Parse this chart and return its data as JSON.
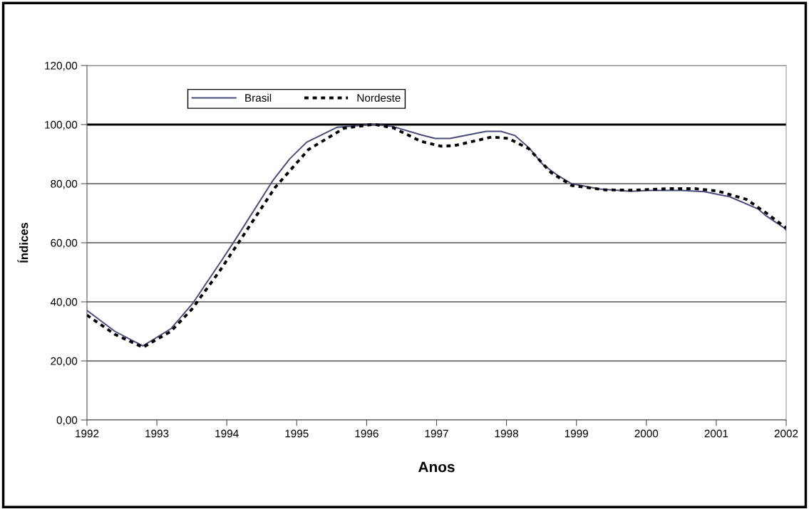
{
  "chart_data": {
    "type": "line",
    "xlabel": "Anos",
    "ylabel": "Índices",
    "xlim": [
      1992,
      2002
    ],
    "xticks": [
      1992,
      1993,
      1994,
      1995,
      1996,
      1997,
      1998,
      1999,
      2000,
      2001,
      2002
    ],
    "ylim": [
      0,
      120
    ],
    "yticks": [
      {
        "value": 0,
        "label": "0,00"
      },
      {
        "value": 20,
        "label": "20,00"
      },
      {
        "value": 40,
        "label": "40,00"
      },
      {
        "value": 60,
        "label": "60,00"
      },
      {
        "value": 80,
        "label": "80,00"
      },
      {
        "value": 100,
        "label": "100,00"
      },
      {
        "value": 120,
        "label": "120,00"
      }
    ],
    "grid": "y",
    "legend": "top left",
    "marker": "none",
    "ref_lines": [
      {
        "axis": "y",
        "value": 100,
        "color": "#000000",
        "line_style": "solid"
      }
    ],
    "series": [
      {
        "name": "Brasil",
        "color": "#4a4a7a",
        "line_style": "solid",
        "x": [
          1992,
          1992.4,
          1992.8,
          1993.2,
          1993.51,
          1993.92,
          1994.12,
          1994.66,
          1994.9,
          1995.14,
          1995.58,
          1995.85,
          1996.1,
          1996.38,
          1996.78,
          1996.98,
          1997.19,
          1997.71,
          1997.92,
          1998.12,
          1998.32,
          1998.52,
          1998.72,
          1998.93,
          1999.33,
          1999.78,
          2000.02,
          2000.5,
          2000.83,
          2001.19,
          2001.6,
          2001.72,
          2001.96,
          2002
        ],
        "values": [
          37.1,
          30.0,
          25.1,
          30.9,
          39.4,
          53.8,
          61.0,
          81.1,
          88.4,
          94.0,
          99.1,
          99.6,
          100.1,
          99.3,
          96.5,
          95.3,
          95.3,
          97.7,
          97.7,
          96.3,
          92.2,
          86.5,
          83.0,
          80.0,
          78.2,
          77.4,
          77.7,
          77.7,
          77.3,
          75.6,
          71.4,
          69.0,
          65.2,
          64.3
        ]
      },
      {
        "name": "Nordeste",
        "color": "#000000",
        "line_style": "dotted",
        "x": [
          1992,
          1992.4,
          1992.8,
          1993.2,
          1993.5,
          1993.9,
          1994.15,
          1994.69,
          1995.17,
          1995.68,
          1995.85,
          1996.1,
          1996.38,
          1996.78,
          1997.06,
          1997.26,
          1997.79,
          1998.03,
          1998.32,
          1998.64,
          1998.93,
          1999.41,
          1999.78,
          2000.33,
          2000.7,
          2001.02,
          2001.43,
          2001.72,
          2002
        ],
        "values": [
          35.5,
          29.0,
          24.6,
          30.0,
          37.5,
          50.5,
          59.4,
          78.7,
          91.6,
          98.8,
          99.3,
          100.1,
          98.9,
          94.3,
          92.7,
          92.9,
          95.8,
          95.3,
          91.8,
          83.7,
          79.4,
          77.9,
          77.8,
          78.3,
          78.3,
          77.5,
          74.7,
          70.0,
          65.0
        ]
      }
    ]
  }
}
